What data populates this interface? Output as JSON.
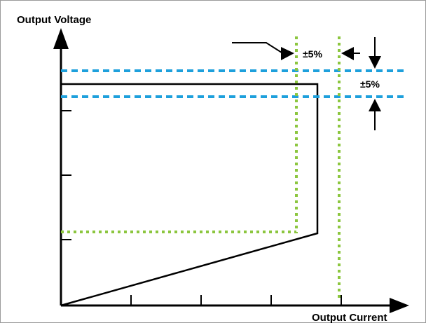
{
  "diagram": {
    "y_axis_label": "Output Voltage",
    "x_axis_label": "Output Current",
    "tolerance_current": "±5%",
    "tolerance_voltage": "±5%",
    "colors": {
      "outline": "#000000",
      "voltage_tolerance": "#1ea0dc",
      "current_tolerance": "#8cc63f",
      "frame": "#9a9a9a"
    }
  }
}
